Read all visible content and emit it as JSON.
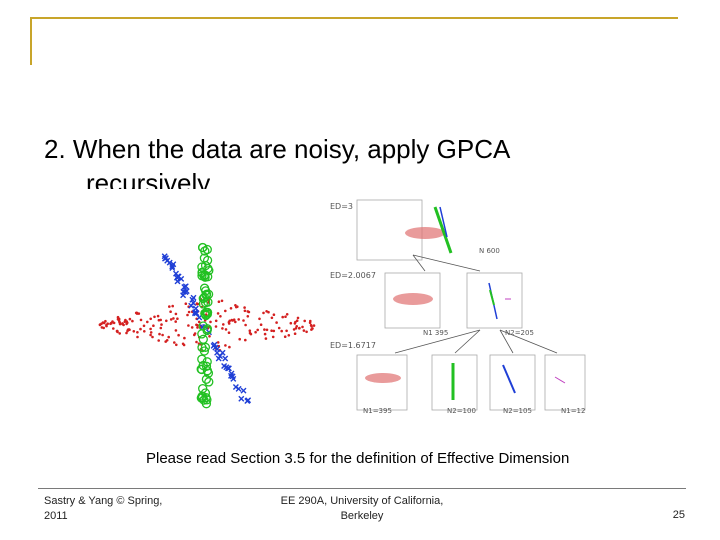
{
  "slide": {
    "title_line1": "2. When the data are noisy, apply GPCA",
    "title_line2": "recursively",
    "caption": "Please read Section 3.5 for the definition of Effective Dimension"
  },
  "figure": {
    "ed_labels": [
      "ED=3",
      "ED=2.0067",
      "ED=1.6717"
    ],
    "node_labels": [
      "N 600",
      "N1 395",
      "N2=205",
      "N1=395",
      "N2=100",
      "N2=105",
      "N1=12"
    ]
  },
  "footer": {
    "left_line1": "Sastry & Yang © Spring,",
    "left_line2": "2011",
    "center_line1": "EE 290A, University of California,",
    "center_line2": "Berkeley",
    "page_number": "25"
  },
  "colors": {
    "accent": "#c8a52a",
    "plane_points": "#d42020",
    "line1_points": "#1f3fd6",
    "line2_points": "#22c022"
  }
}
